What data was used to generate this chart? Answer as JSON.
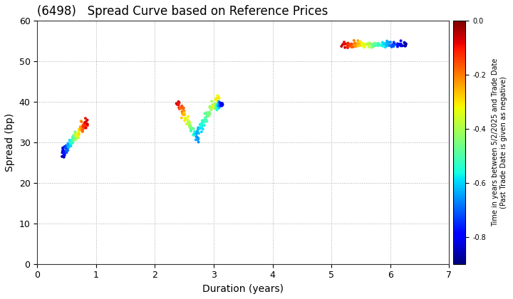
{
  "title": "(6498)   Spread Curve based on Reference Prices",
  "xlabel": "Duration (years)",
  "ylabel": "Spread (bp)",
  "colorbar_label": "Time in years between 5/2/2025 and Trade Date\n(Past Trade Date is given as negative)",
  "xlim": [
    0,
    7
  ],
  "ylim": [
    0,
    60
  ],
  "xticks": [
    0,
    1,
    2,
    3,
    4,
    5,
    6,
    7
  ],
  "yticks": [
    0,
    10,
    20,
    30,
    40,
    50,
    60
  ],
  "clim_min": -0.9,
  "clim_max": 0.0,
  "marker_size": 8,
  "background_color": "#ffffff",
  "grid_color": "#aaaaaa"
}
